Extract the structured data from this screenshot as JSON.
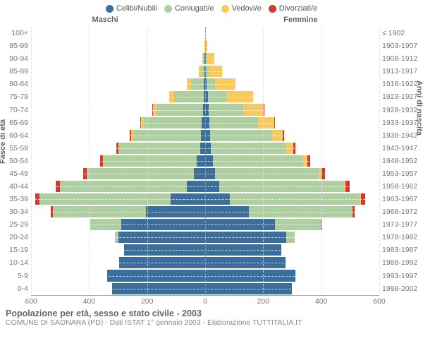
{
  "legend": [
    {
      "label": "Celibi/Nubili",
      "color": "#3b6e9b"
    },
    {
      "label": "Coniugati/e",
      "color": "#aed0a1"
    },
    {
      "label": "Vedovi/e",
      "color": "#f7c95f"
    },
    {
      "label": "Divorziati/e",
      "color": "#d33a2f"
    }
  ],
  "headers": {
    "male": "Maschi",
    "female": "Femmine"
  },
  "axis_titles": {
    "left": "Fasce di età",
    "right": "Anni di nascita"
  },
  "x": {
    "max": 600,
    "ticks_left": [
      600,
      400,
      200,
      0
    ],
    "ticks_right": [
      200,
      400,
      600
    ]
  },
  "colors": {
    "single": "#3b6e9b",
    "married": "#aed0a1",
    "widowed": "#f7c95f",
    "divorced": "#d33a2f",
    "bg": "#ffffff",
    "grid": "#dddddd"
  },
  "rows": [
    {
      "age": "100+",
      "birth": "≤ 1902",
      "m": [
        0,
        0,
        0,
        0
      ],
      "f": [
        0,
        0,
        2,
        0
      ]
    },
    {
      "age": "95-99",
      "birth": "1903-1907",
      "m": [
        0,
        0,
        3,
        0
      ],
      "f": [
        0,
        0,
        8,
        0
      ]
    },
    {
      "age": "90-94",
      "birth": "1908-1912",
      "m": [
        2,
        3,
        5,
        0
      ],
      "f": [
        2,
        2,
        28,
        0
      ]
    },
    {
      "age": "85-89",
      "birth": "1913-1917",
      "m": [
        2,
        12,
        8,
        0
      ],
      "f": [
        3,
        8,
        47,
        0
      ]
    },
    {
      "age": "80-84",
      "birth": "1918-1922",
      "m": [
        4,
        45,
        14,
        0
      ],
      "f": [
        5,
        28,
        72,
        0
      ]
    },
    {
      "age": "75-79",
      "birth": "1923-1927",
      "m": [
        6,
        101,
        16,
        0
      ],
      "f": [
        10,
        64,
        92,
        0
      ]
    },
    {
      "age": "70-74",
      "birth": "1928-1932",
      "m": [
        8,
        160,
        12,
        2
      ],
      "f": [
        12,
        118,
        72,
        2
      ]
    },
    {
      "age": "65-69",
      "birth": "1933-1937",
      "m": [
        11,
        201,
        8,
        3
      ],
      "f": [
        15,
        168,
        54,
        3
      ]
    },
    {
      "age": "60-64",
      "birth": "1938-1942",
      "m": [
        14,
        235,
        5,
        5
      ],
      "f": [
        18,
        212,
        38,
        4
      ]
    },
    {
      "age": "55-59",
      "birth": "1943-1947",
      "m": [
        18,
        278,
        3,
        8
      ],
      "f": [
        20,
        260,
        24,
        6
      ]
    },
    {
      "age": "50-54",
      "birth": "1948-1952",
      "m": [
        28,
        322,
        2,
        10
      ],
      "f": [
        26,
        312,
        15,
        8
      ]
    },
    {
      "age": "45-49",
      "birth": "1953-1957",
      "m": [
        38,
        370,
        1,
        12
      ],
      "f": [
        34,
        358,
        9,
        11
      ]
    },
    {
      "age": "40-44",
      "birth": "1958-1962",
      "m": [
        62,
        438,
        1,
        15
      ],
      "f": [
        48,
        430,
        5,
        14
      ]
    },
    {
      "age": "35-39",
      "birth": "1963-1967",
      "m": [
        120,
        450,
        0,
        16
      ],
      "f": [
        85,
        448,
        3,
        15
      ]
    },
    {
      "age": "30-34",
      "birth": "1968-1972",
      "m": [
        205,
        320,
        0,
        8
      ],
      "f": [
        150,
        356,
        1,
        9
      ]
    },
    {
      "age": "25-29",
      "birth": "1973-1977",
      "m": [
        290,
        105,
        0,
        2
      ],
      "f": [
        240,
        160,
        0,
        3
      ]
    },
    {
      "age": "20-24",
      "birth": "1978-1982",
      "m": [
        300,
        12,
        0,
        0
      ],
      "f": [
        280,
        28,
        0,
        0
      ]
    },
    {
      "age": "15-19",
      "birth": "1983-1987",
      "m": [
        280,
        0,
        0,
        0
      ],
      "f": [
        262,
        0,
        0,
        0
      ]
    },
    {
      "age": "10-14",
      "birth": "1988-1992",
      "m": [
        296,
        0,
        0,
        0
      ],
      "f": [
        278,
        0,
        0,
        0
      ]
    },
    {
      "age": "5-9",
      "birth": "1993-1997",
      "m": [
        338,
        0,
        0,
        0
      ],
      "f": [
        312,
        0,
        0,
        0
      ]
    },
    {
      "age": "0-4",
      "birth": "1998-2002",
      "m": [
        320,
        0,
        0,
        0
      ],
      "f": [
        298,
        0,
        0,
        0
      ]
    }
  ],
  "footer": {
    "title": "Popolazione per età, sesso e stato civile - 2003",
    "subtitle": "COMUNE DI SAONARA (PD) - Dati ISTAT 1° gennaio 2003 - Elaborazione TUTTITALIA.IT"
  }
}
